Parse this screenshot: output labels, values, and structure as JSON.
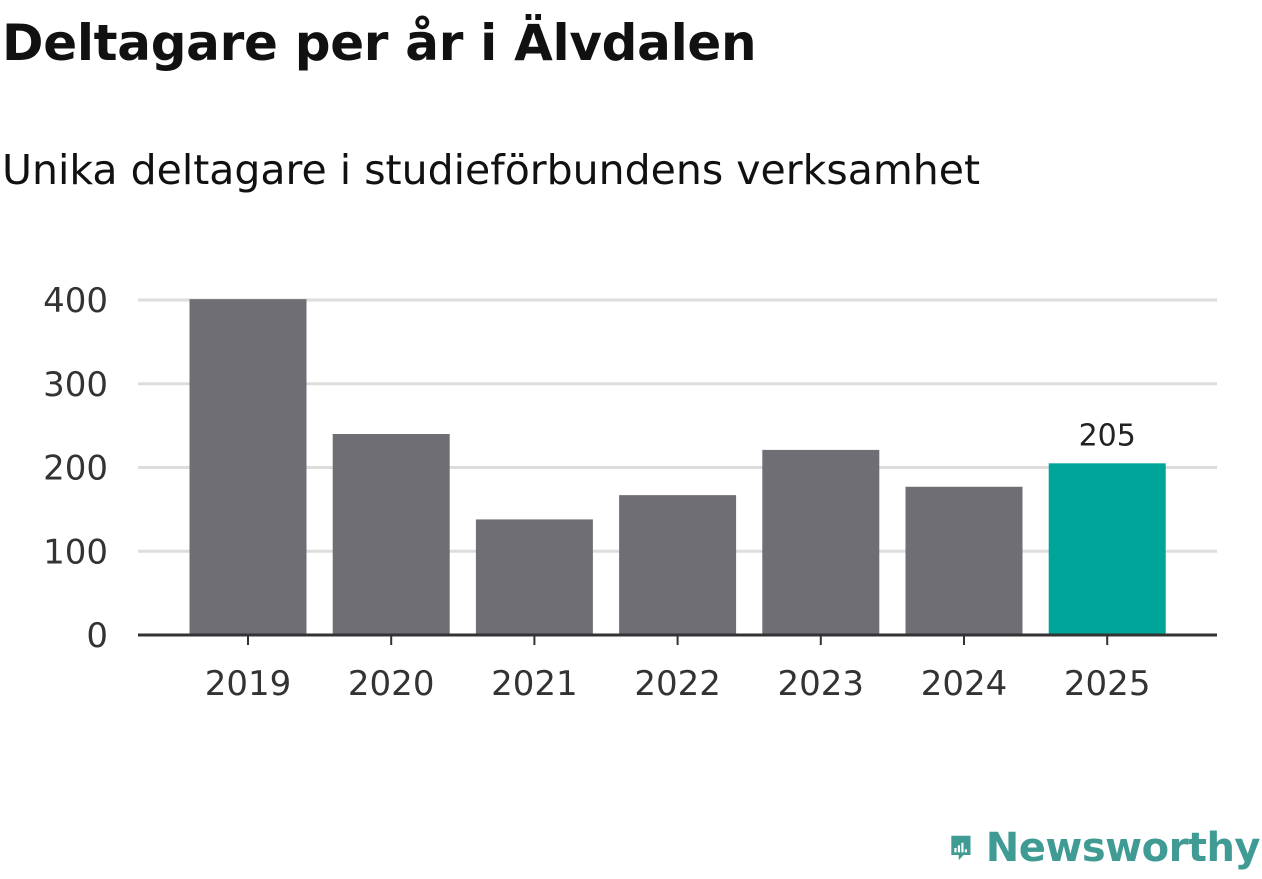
{
  "title": "Deltagare per år i Älvdalen",
  "subtitle": "Unika deltagare i studieförbundens verksamhet",
  "brand": {
    "name": "Newsworthy",
    "icon": "newsworthy-logo-icon",
    "color": "#3f9b94"
  },
  "colors": {
    "bar": "#6f6e74",
    "highlight": "#00a59a",
    "grid": "#dddddd",
    "axis": "#333333"
  },
  "chart_data": {
    "type": "bar",
    "categories": [
      "2019",
      "2020",
      "2021",
      "2022",
      "2023",
      "2024",
      "2025"
    ],
    "values": [
      401,
      240,
      138,
      167,
      221,
      177,
      205
    ],
    "highlight_index": 6,
    "data_labels": [
      null,
      null,
      null,
      null,
      null,
      null,
      "205"
    ],
    "title": "Deltagare per år i Älvdalen",
    "subtitle": "Unika deltagare i studieförbundens verksamhet",
    "ylim": [
      0,
      400
    ],
    "yticks": [
      0,
      100,
      200,
      300,
      400
    ],
    "grid": true,
    "legend": "none"
  }
}
